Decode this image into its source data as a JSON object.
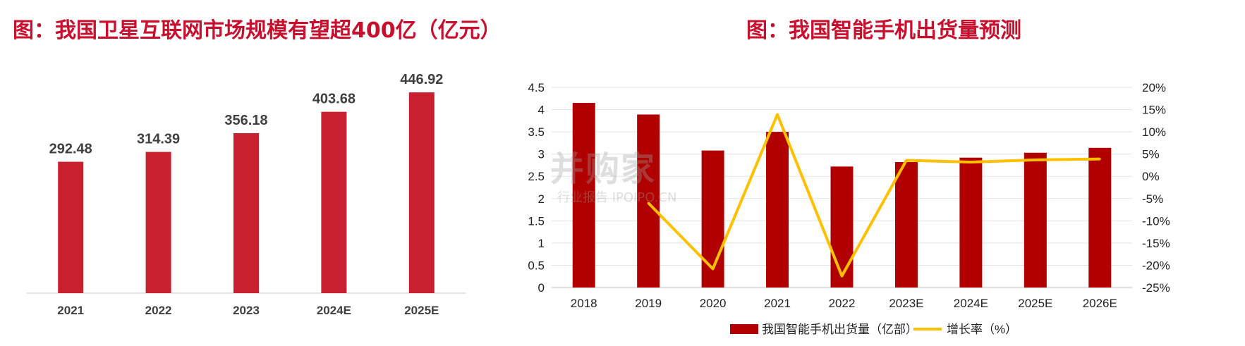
{
  "titles": {
    "left": "图：我国卫星互联网市场规模有望超400亿（亿元）",
    "right": "图：我国智能手机出货量预测"
  },
  "watermark": {
    "main": "并购家",
    "sub": "行业报告 IPOIPO.CN"
  },
  "colors": {
    "title": "#c8102e",
    "bar_left": "#c8202f",
    "bar_right": "#b00000",
    "line": "#ffc000"
  },
  "chart_data": [
    {
      "type": "bar",
      "categories": [
        "2021",
        "2022",
        "2023",
        "2024E",
        "2025E"
      ],
      "values": [
        292.48,
        314.39,
        356.18,
        403.68,
        446.92
      ],
      "value_labels": [
        "292.48",
        "314.39",
        "356.18",
        "403.68",
        "446.92"
      ],
      "ylim": [
        0,
        480
      ],
      "grid": false,
      "legend": "none"
    },
    {
      "type": "bar",
      "categories": [
        "2018",
        "2019",
        "2020",
        "2021",
        "2022",
        "2023E",
        "2024E",
        "2025E",
        "2026E"
      ],
      "series": [
        {
          "name": "我国智能手机出货量（亿部）",
          "type": "bar",
          "axis": "left",
          "values": [
            4.15,
            3.89,
            3.08,
            3.5,
            2.72,
            2.82,
            2.92,
            3.03,
            3.14
          ]
        },
        {
          "name": "增长率（%）",
          "type": "line",
          "axis": "right",
          "values": [
            null,
            -6.0,
            -20.8,
            13.9,
            -22.4,
            3.6,
            3.2,
            3.7,
            3.9
          ]
        }
      ],
      "y_left": {
        "ylim": [
          0,
          4.5
        ],
        "ticks": [
          "0",
          "0.5",
          "1",
          "1.5",
          "2",
          "2.5",
          "3",
          "3.5",
          "4",
          "4.5"
        ]
      },
      "y_right": {
        "ylim": [
          -25,
          20
        ],
        "ticks": [
          "-25%",
          "-20%",
          "-15%",
          "-10%",
          "-5%",
          "0%",
          "5%",
          "10%",
          "15%",
          "20%"
        ]
      },
      "grid": true,
      "legend": "bottom"
    }
  ]
}
